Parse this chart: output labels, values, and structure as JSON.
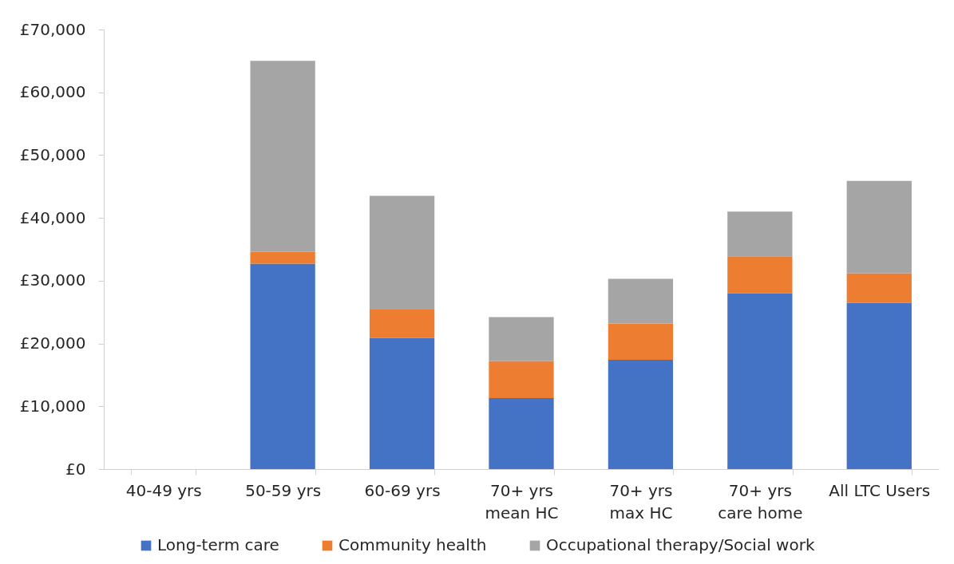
{
  "chart_data": {
    "type": "bar",
    "stacked": true,
    "categories": [
      "40-49 yrs",
      "50-59 yrs",
      "60-69 yrs",
      "70+ yrs\nmean HC",
      "70+ yrs\nmax HC",
      "70+ yrs\ncare home",
      "All LTC Users"
    ],
    "series": [
      {
        "name": "Long-term care",
        "color": "#4472c4",
        "values": [
          null,
          32700,
          20900,
          11300,
          17400,
          28000,
          26500
        ]
      },
      {
        "name": "Community health",
        "color": "#ed7d31",
        "values": [
          null,
          1900,
          4500,
          5900,
          5800,
          5900,
          4700
        ]
      },
      {
        "name": "Occupational therapy/Social work",
        "color": "#a5a5a5",
        "values": [
          null,
          30400,
          18100,
          7000,
          7100,
          7100,
          14700
        ]
      }
    ],
    "ylim": [
      0,
      70000
    ],
    "yticks": [
      {
        "value": 0,
        "label": "£0"
      },
      {
        "value": 10000,
        "label": "£10,000"
      },
      {
        "value": 20000,
        "label": "£20,000"
      },
      {
        "value": 30000,
        "label": "£30,000"
      },
      {
        "value": 40000,
        "label": "£40,000"
      },
      {
        "value": 50000,
        "label": "£50,000"
      },
      {
        "value": 60000,
        "label": "£60,000"
      },
      {
        "value": 70000,
        "label": "£70,000"
      }
    ],
    "grid": false,
    "legend": "bottom"
  }
}
